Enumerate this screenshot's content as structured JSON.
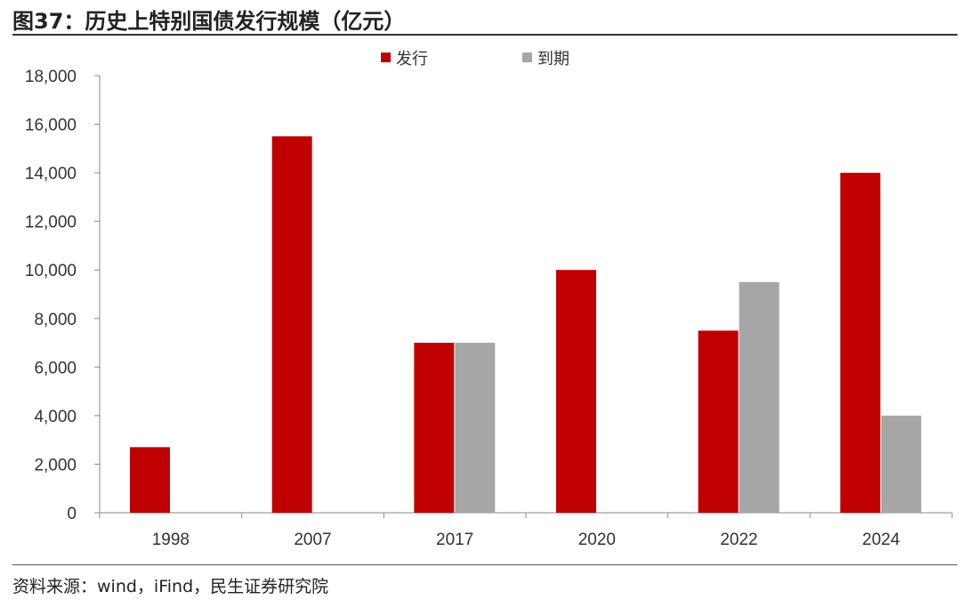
{
  "title": "图37：历史上特别国债发行规模（亿元）",
  "source": "资料来源：wind，iFind，民生证券研究院",
  "chart_data": {
    "type": "bar",
    "title": "图37：历史上特别国债发行规模（亿元）",
    "categories": [
      "1998",
      "2007",
      "2017",
      "2020",
      "2022",
      "2024"
    ],
    "series": [
      {
        "name": "发行",
        "color": "#C00000",
        "values": [
          2700,
          15500,
          7000,
          10000,
          7500,
          14000
        ]
      },
      {
        "name": "到期",
        "color": "#A6A6A6",
        "values": [
          null,
          null,
          7000,
          null,
          9500,
          4000
        ]
      }
    ],
    "ylim": [
      0,
      18000
    ],
    "yticks": [
      "0",
      "2,000",
      "4,000",
      "6,000",
      "8,000",
      "10,000",
      "12,000",
      "14,000",
      "16,000",
      "18,000"
    ],
    "ytick_values": [
      0,
      2000,
      4000,
      6000,
      8000,
      10000,
      12000,
      14000,
      16000,
      18000
    ],
    "grid": false,
    "legend": "top-center"
  }
}
